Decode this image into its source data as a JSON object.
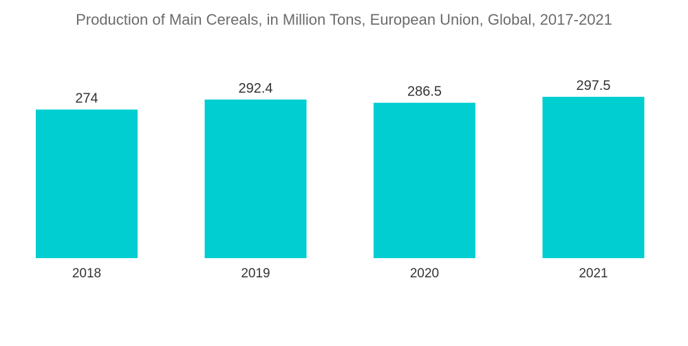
{
  "chart_data": {
    "type": "bar",
    "title": "Production of Main Cereals, in Million Tons, European Union, Global, 2017-2021",
    "categories": [
      "2018",
      "2019",
      "2020",
      "2021"
    ],
    "values": [
      274,
      292.4,
      286.5,
      297.5
    ],
    "value_labels": [
      "274",
      "292.4",
      "286.5",
      "297.5"
    ],
    "xlabel": "",
    "ylabel": "",
    "ylim": [
      0,
      297.5
    ],
    "grid": false,
    "legend": "none",
    "bar_color": "#00ced1"
  }
}
